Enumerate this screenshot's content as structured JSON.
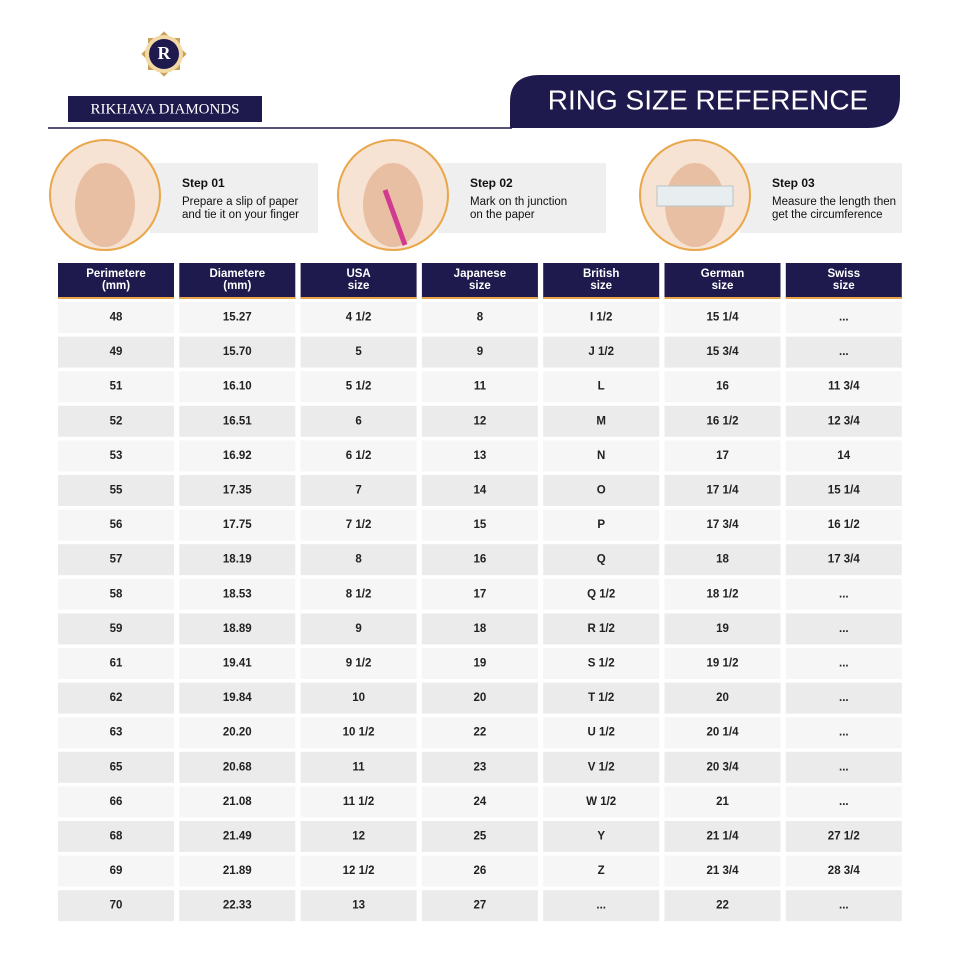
{
  "logo": {
    "monogram": "R",
    "brand": "RIKHAVA DIAMONDS"
  },
  "header": {
    "title": "RING SIZE REFERENCE"
  },
  "steps": [
    {
      "label": "Step 01",
      "lines": [
        "Prepare a slip of paper",
        "and tie it on your finger"
      ]
    },
    {
      "label": "Step 02",
      "lines": [
        "Mark on th junction",
        "on the paper"
      ]
    },
    {
      "label": "Step 03",
      "lines": [
        "Measure the length then",
        "get the circumference"
      ]
    }
  ],
  "table": {
    "columns": [
      [
        "Perimetere",
        "(mm)"
      ],
      [
        "Diametere",
        "(mm)"
      ],
      [
        "USA",
        "size"
      ],
      [
        "Japanese",
        "size"
      ],
      [
        "British",
        "size"
      ],
      [
        "German",
        "size"
      ],
      [
        "Swiss",
        "size"
      ]
    ],
    "rows": [
      [
        "48",
        "15.27",
        "4 1/2",
        "8",
        "I 1/2",
        "15 1/4",
        "..."
      ],
      [
        "49",
        "15.70",
        "5",
        "9",
        "J 1/2",
        "15 3/4",
        "..."
      ],
      [
        "51",
        "16.10",
        "5 1/2",
        "11",
        "L",
        "16",
        "11 3/4"
      ],
      [
        "52",
        "16.51",
        "6",
        "12",
        "M",
        "16 1/2",
        "12 3/4"
      ],
      [
        "53",
        "16.92",
        "6 1/2",
        "13",
        "N",
        "17",
        "14"
      ],
      [
        "55",
        "17.35",
        "7",
        "14",
        "O",
        "17 1/4",
        "15 1/4"
      ],
      [
        "56",
        "17.75",
        "7 1/2",
        "15",
        "P",
        "17 3/4",
        "16 1/2"
      ],
      [
        "57",
        "18.19",
        "8",
        "16",
        "Q",
        "18",
        "17 3/4"
      ],
      [
        "58",
        "18.53",
        "8 1/2",
        "17",
        "Q 1/2",
        "18 1/2",
        "..."
      ],
      [
        "59",
        "18.89",
        "9",
        "18",
        "R 1/2",
        "19",
        "..."
      ],
      [
        "61",
        "19.41",
        "9 1/2",
        "19",
        "S 1/2",
        "19 1/2",
        "..."
      ],
      [
        "62",
        "19.84",
        "10",
        "20",
        "T 1/2",
        "20",
        "..."
      ],
      [
        "63",
        "20.20",
        "10 1/2",
        "22",
        "U 1/2",
        "20 1/4",
        "..."
      ],
      [
        "65",
        "20.68",
        "11",
        "23",
        "V 1/2",
        "20 3/4",
        "..."
      ],
      [
        "66",
        "21.08",
        "11 1/2",
        "24",
        "W 1/2",
        "21",
        "..."
      ],
      [
        "68",
        "21.49",
        "12",
        "25",
        "Y",
        "21 1/4",
        "27 1/2"
      ],
      [
        "69",
        "21.89",
        "12 1/2",
        "26",
        "Z",
        "21 3/4",
        "28 3/4"
      ],
      [
        "70",
        "22.33",
        "13",
        "27",
        "...",
        "22",
        "..."
      ]
    ]
  }
}
